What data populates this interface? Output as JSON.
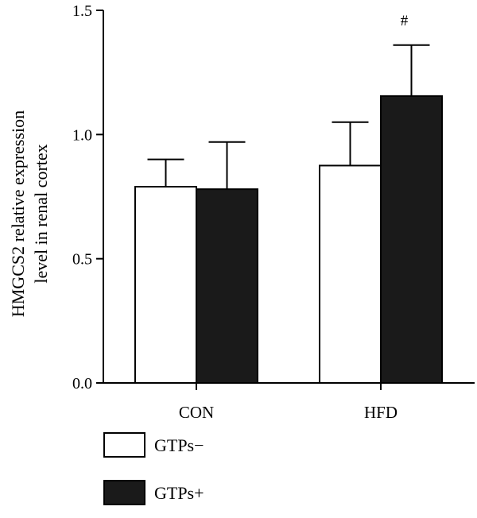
{
  "chart_data": {
    "type": "bar",
    "categories": [
      "CON",
      "HFD"
    ],
    "series": [
      {
        "name": "GTPs−",
        "values": [
          0.79,
          0.875
        ],
        "errors": [
          0.11,
          0.175
        ],
        "color": "#ffffff"
      },
      {
        "name": "GTPs+",
        "values": [
          0.78,
          1.155
        ],
        "errors": [
          0.19,
          0.205
        ],
        "color": "#1a1a1a"
      }
    ],
    "annotations": [
      {
        "category": "HFD",
        "series": 1,
        "text": "#"
      }
    ],
    "ylabel_lines": [
      "HMGCS2 relative expression",
      "level in renal cortex"
    ],
    "xlabel": "",
    "ylim": [
      0,
      1.5
    ],
    "yticks": [
      "0.0",
      "0.5",
      "1.0",
      "1.5"
    ],
    "grid": false,
    "legend_position": "bottom-left"
  }
}
